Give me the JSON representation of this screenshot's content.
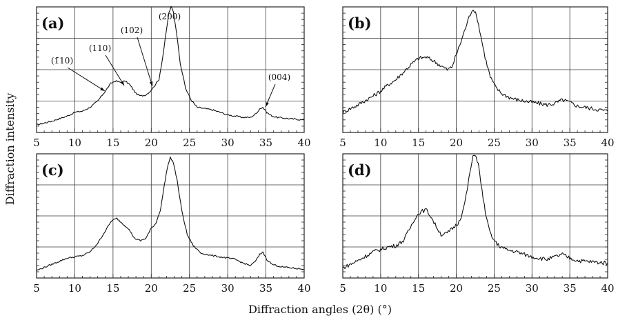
{
  "xlabel": "Diffraction angles (2θ) (°)",
  "ylabel": "Diffraction intensity",
  "chart_data": [
    {
      "type": "line",
      "panel": "(a)",
      "xlim": [
        5,
        40
      ],
      "ylim": [
        0,
        10
      ],
      "grid": true,
      "x_ticks": [
        5,
        10,
        15,
        20,
        25,
        30,
        35,
        40
      ],
      "annotations": [
        {
          "text": "(1̄10)",
          "x": 14.5
        },
        {
          "text": "(110)",
          "x": 16.5
        },
        {
          "text": "(102)",
          "x": 20.5
        },
        {
          "text": "(200)",
          "x": 22.6
        },
        {
          "text": "(004)",
          "x": 34.5
        }
      ],
      "series": [
        {
          "x": [
            5,
            7,
            9,
            10,
            11,
            12,
            13,
            14,
            14.7,
            15.3,
            16,
            16.6,
            17.2,
            18,
            18.6,
            19.3,
            19.9,
            20.4,
            21,
            21.5,
            22,
            22.3,
            22.6,
            22.9,
            23.3,
            23.8,
            24.5,
            25.2,
            26,
            27,
            28,
            29,
            30,
            31,
            32,
            33,
            33.7,
            34.2,
            34.6,
            35.1,
            35.8,
            36.5,
            38,
            40
          ],
          "y": [
            0.6,
            0.9,
            1.3,
            1.6,
            1.7,
            2.0,
            2.5,
            3.3,
            3.9,
            4.1,
            4.0,
            4.1,
            3.8,
            3.1,
            2.9,
            3.0,
            3.3,
            3.7,
            4.2,
            6.0,
            8.2,
            9.5,
            10.0,
            9.6,
            8.0,
            5.5,
            3.5,
            2.6,
            2.0,
            1.9,
            1.8,
            1.6,
            1.4,
            1.3,
            1.2,
            1.2,
            1.5,
            1.9,
            2.0,
            1.6,
            1.3,
            1.2,
            1.1,
            1.0
          ]
        }
      ]
    },
    {
      "type": "line",
      "panel": "(b)",
      "xlim": [
        5,
        40
      ],
      "ylim": [
        0,
        10
      ],
      "grid": true,
      "x_ticks": [
        5,
        10,
        15,
        20,
        25,
        30,
        35,
        40
      ],
      "series": [
        {
          "x": [
            5,
            7,
            9,
            10,
            11,
            12,
            13,
            14,
            15,
            16,
            17,
            18,
            18.8,
            19.4,
            20,
            20.6,
            21.2,
            21.7,
            22.1,
            22.4,
            22.8,
            23.2,
            23.8,
            24.5,
            25.2,
            26,
            27,
            28,
            29,
            30,
            31,
            32,
            33,
            34,
            35,
            36,
            38,
            40
          ],
          "y": [
            1.6,
            2.2,
            2.9,
            3.3,
            3.8,
            4.2,
            4.8,
            5.4,
            5.9,
            6.0,
            5.7,
            5.3,
            5.0,
            5.2,
            6.2,
            7.2,
            8.3,
            9.2,
            9.8,
            9.7,
            9.0,
            7.8,
            6.0,
            4.4,
            3.6,
            3.1,
            2.8,
            2.6,
            2.5,
            2.4,
            2.3,
            2.2,
            2.3,
            2.6,
            2.4,
            2.1,
            1.9,
            1.7
          ]
        }
      ]
    },
    {
      "type": "line",
      "panel": "(c)",
      "xlim": [
        5,
        40
      ],
      "ylim": [
        0,
        10
      ],
      "grid": true,
      "x_ticks": [
        5,
        10,
        15,
        20,
        25,
        30,
        35,
        40
      ],
      "series": [
        {
          "x": [
            5,
            7,
            9,
            10,
            11,
            12,
            13,
            14,
            14.8,
            15.5,
            16.2,
            17,
            17.8,
            18.6,
            19.3,
            20,
            20.6,
            21.2,
            21.7,
            22.1,
            22.5,
            22.9,
            23.4,
            24,
            24.7,
            25.5,
            26.5,
            28,
            29,
            30,
            31,
            32,
            33,
            33.7,
            34.2,
            34.6,
            35.1,
            35.8,
            37,
            40
          ],
          "y": [
            0.6,
            1.1,
            1.6,
            1.7,
            1.8,
            2.1,
            2.8,
            3.8,
            4.6,
            4.8,
            4.4,
            4.0,
            3.2,
            3.0,
            3.2,
            4.0,
            4.4,
            5.5,
            7.4,
            8.9,
            9.7,
            9.3,
            7.8,
            5.4,
            3.5,
            2.6,
            2.0,
            1.8,
            1.7,
            1.6,
            1.5,
            1.2,
            1.0,
            1.4,
            1.9,
            2.1,
            1.5,
            1.1,
            0.9,
            0.7
          ]
        }
      ]
    },
    {
      "type": "line",
      "panel": "(d)",
      "xlim": [
        5,
        40
      ],
      "ylim": [
        0,
        10
      ],
      "grid": true,
      "x_ticks": [
        5,
        10,
        15,
        20,
        25,
        30,
        35,
        40
      ],
      "series": [
        {
          "x": [
            5,
            7,
            9,
            10,
            11,
            12,
            13,
            13.8,
            14.5,
            15.2,
            16,
            16.6,
            17.2,
            18,
            18.8,
            19.5,
            20.2,
            20.8,
            21.3,
            21.8,
            22.2,
            22.5,
            22.9,
            23.4,
            24,
            24.6,
            25.4,
            26.5,
            28,
            29,
            30,
            31,
            32,
            33,
            34,
            35,
            36,
            38,
            40
          ],
          "y": [
            0.8,
            1.4,
            2.1,
            2.3,
            2.5,
            2.6,
            3.0,
            3.9,
            4.8,
            5.3,
            5.5,
            5.0,
            4.3,
            3.5,
            3.6,
            4.0,
            4.4,
            5.2,
            6.6,
            8.5,
            9.7,
            10.0,
            9.2,
            7.0,
            4.7,
            3.4,
            2.7,
            2.3,
            2.1,
            1.9,
            1.7,
            1.6,
            1.5,
            1.7,
            1.9,
            1.6,
            1.4,
            1.3,
            1.2
          ]
        }
      ]
    }
  ]
}
